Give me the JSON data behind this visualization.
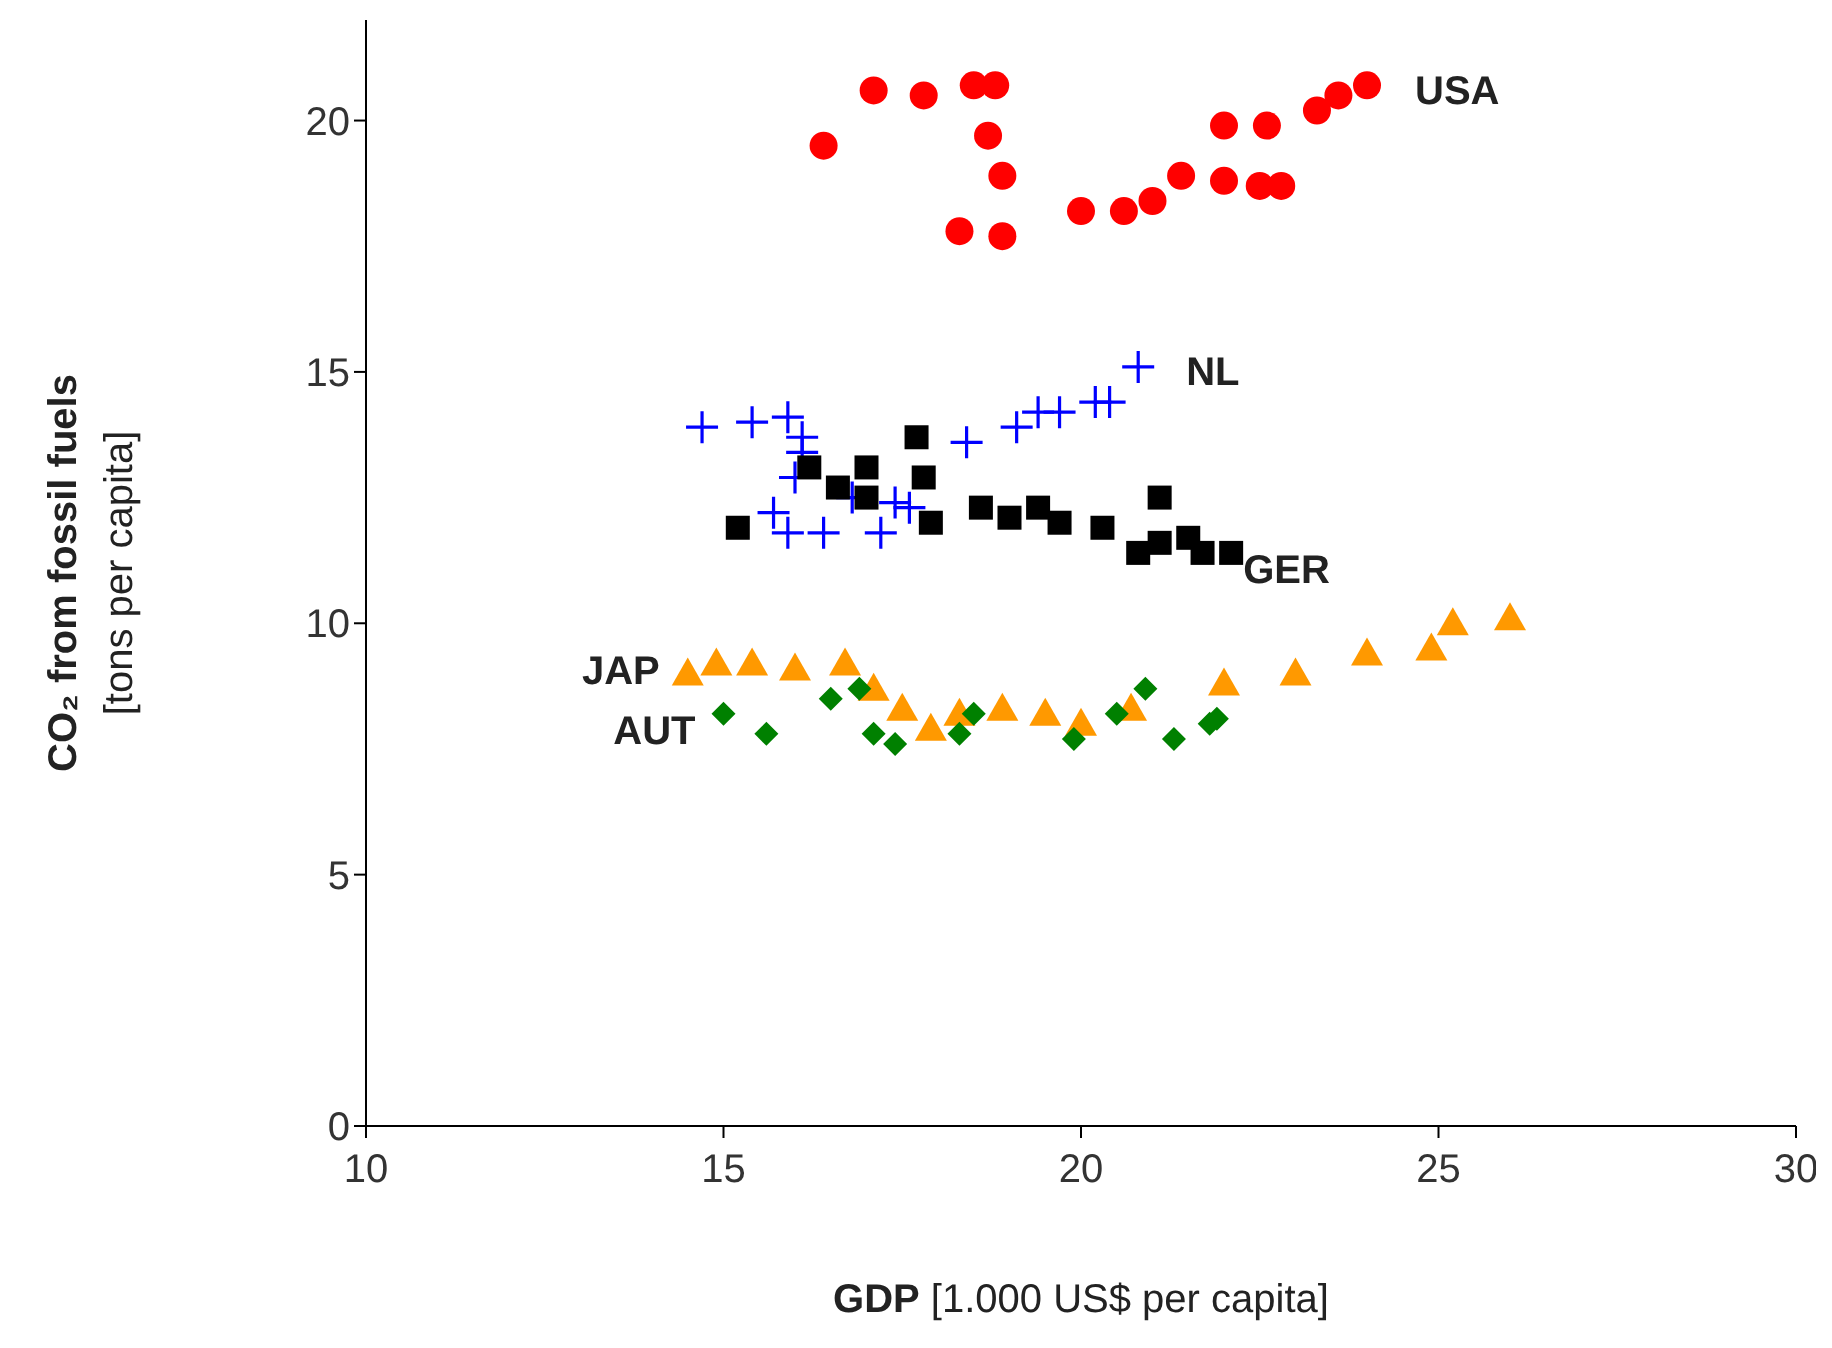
{
  "chart_data": {
    "type": "scatter",
    "xlabel": "GDP  [1.000 US$ per capita]",
    "ylabel": "CO₂ from fossil fuels\n[tons per capita]",
    "xlim": [
      10,
      30
    ],
    "xticks": [
      10,
      15,
      20,
      25,
      30
    ],
    "ylim": [
      0,
      22
    ],
    "yticks": [
      0,
      5,
      10,
      15,
      20
    ],
    "grid": false,
    "legend": false,
    "series": [
      {
        "name": "USA",
        "color": "#ff0000",
        "marker": "circle",
        "x": [
          16.4,
          17.1,
          17.8,
          18.5,
          18.8,
          18.7,
          18.9,
          18.9,
          18.3,
          20.0,
          20.6,
          21.0,
          21.4,
          22.0,
          22.6,
          22.0,
          22.5,
          22.8,
          23.3,
          23.6,
          24.0
        ],
        "values": [
          19.5,
          20.6,
          20.5,
          20.7,
          20.7,
          19.7,
          18.9,
          17.7,
          17.8,
          18.2,
          18.2,
          18.4,
          18.9,
          19.9,
          19.9,
          18.8,
          18.7,
          18.7,
          20.2,
          20.5,
          20.7
        ]
      },
      {
        "name": "NL",
        "color": "#0000ff",
        "marker": "cross",
        "x": [
          14.7,
          15.4,
          15.9,
          16.1,
          16.1,
          16.0,
          15.7,
          15.9,
          16.4,
          17.2,
          16.8,
          17.4,
          17.6,
          18.4,
          19.1,
          19.4,
          19.7,
          20.2,
          20.4,
          20.8
        ],
        "values": [
          13.9,
          14.0,
          14.1,
          13.7,
          13.4,
          12.9,
          12.2,
          11.8,
          11.8,
          11.8,
          12.5,
          12.4,
          12.3,
          13.6,
          13.9,
          14.2,
          14.2,
          14.4,
          14.4,
          15.1
        ]
      },
      {
        "name": "GER",
        "color": "#000000",
        "marker": "square",
        "x": [
          15.2,
          16.2,
          16.6,
          17.0,
          17.0,
          17.7,
          17.8,
          17.9,
          18.6,
          19.0,
          19.4,
          19.7,
          20.3,
          20.8,
          21.1,
          21.1,
          21.5,
          21.7,
          22.1
        ],
        "values": [
          11.9,
          13.1,
          12.7,
          12.5,
          13.1,
          13.7,
          12.9,
          12.0,
          12.3,
          12.1,
          12.3,
          12.0,
          11.9,
          11.4,
          12.5,
          11.6,
          11.7,
          11.4,
          11.4
        ]
      },
      {
        "name": "JAP",
        "color": "#ff9900",
        "marker": "triangle",
        "x": [
          14.5,
          14.9,
          15.4,
          16.0,
          16.7,
          17.1,
          17.5,
          17.9,
          18.3,
          18.9,
          19.5,
          20.0,
          20.7,
          22.0,
          23.0,
          24.0,
          24.9,
          25.2,
          26.0
        ],
        "values": [
          9.0,
          9.2,
          9.2,
          9.1,
          9.2,
          8.7,
          8.3,
          7.9,
          8.2,
          8.3,
          8.2,
          8.0,
          8.3,
          8.8,
          9.0,
          9.4,
          9.5,
          10.0,
          10.1
        ]
      },
      {
        "name": "AUT",
        "color": "#008000",
        "marker": "diamond",
        "x": [
          15.0,
          15.6,
          16.5,
          16.9,
          17.1,
          17.4,
          18.3,
          18.5,
          19.9,
          20.5,
          20.9,
          21.3,
          21.8,
          21.9
        ],
        "values": [
          8.2,
          7.8,
          8.5,
          8.7,
          7.8,
          7.6,
          7.8,
          8.2,
          7.7,
          8.2,
          8.7,
          7.7,
          8.0,
          8.1
        ]
      }
    ]
  }
}
